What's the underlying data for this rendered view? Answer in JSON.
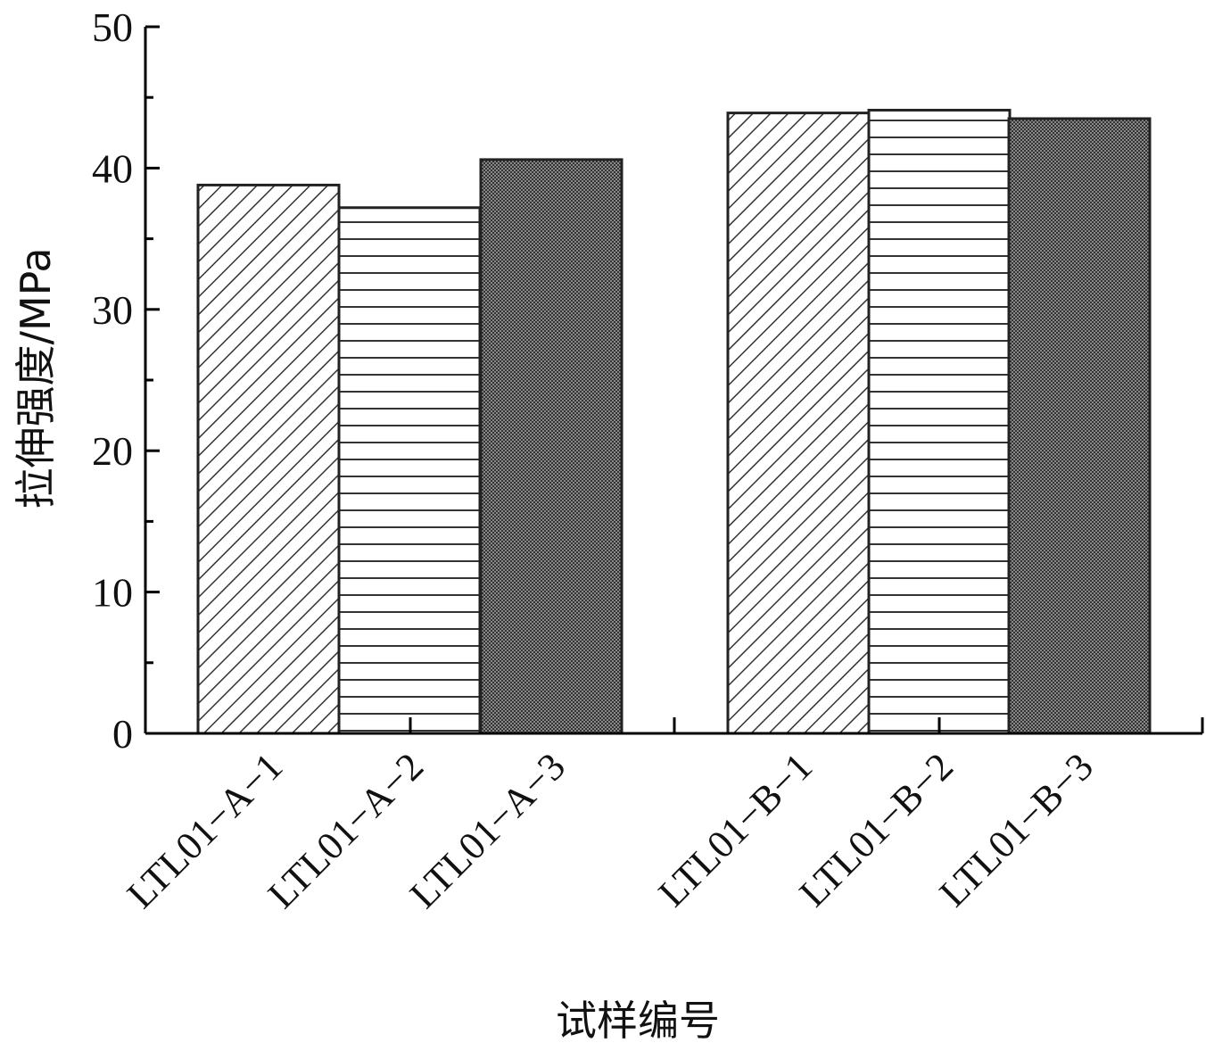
{
  "chart_data": {
    "type": "bar",
    "xlabel": "试样编号",
    "ylabel": "拉伸强度/MPa",
    "ylim": [
      0,
      50
    ],
    "yticks": [
      0,
      10,
      20,
      30,
      40,
      50
    ],
    "grid": false,
    "legend": "none",
    "categories": [
      "LTL01−A−1",
      "LTL01−A−2",
      "LTL01−A−3",
      "LTL01−B−1",
      "LTL01−B−2",
      "LTL01−B−3"
    ],
    "values": [
      38.8,
      37.2,
      40.6,
      43.9,
      44.1,
      43.5
    ],
    "patterns": [
      "diagonal-hatch",
      "horizontal-lines",
      "crosshatch-dots",
      "diagonal-hatch",
      "horizontal-lines",
      "crosshatch-dots"
    ],
    "colors": {
      "axis": "#000000",
      "stroke": "#222222",
      "fill": "#ffffff",
      "dense": "#555555"
    }
  }
}
